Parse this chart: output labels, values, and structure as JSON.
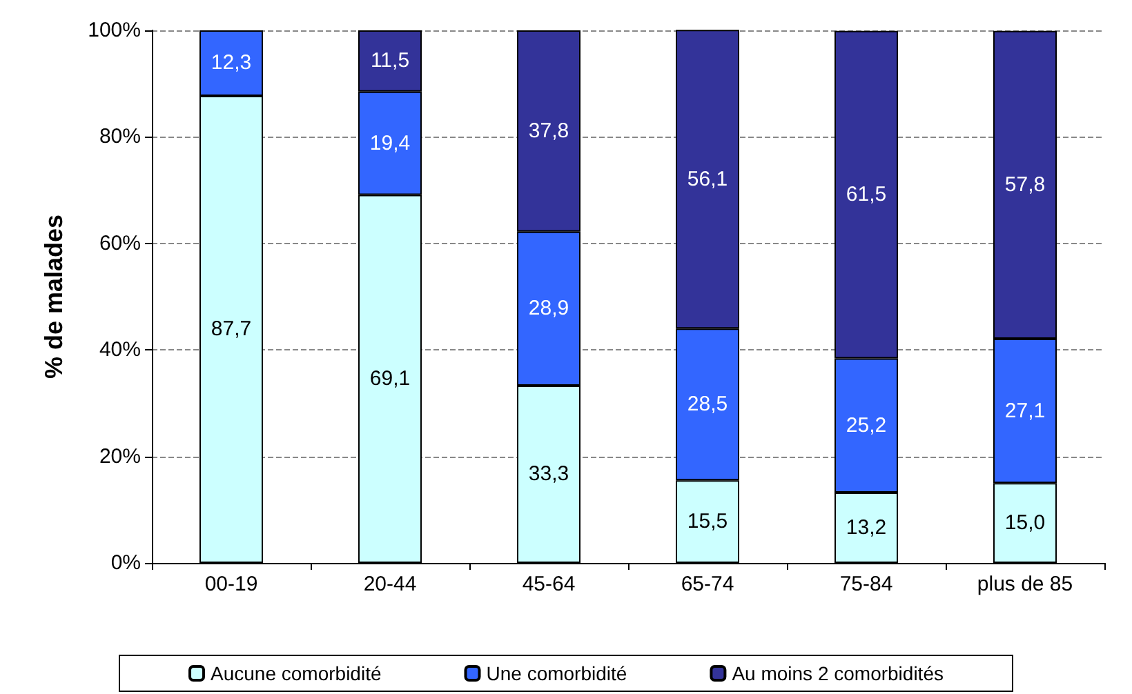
{
  "chart_data": {
    "type": "bar",
    "stacked": true,
    "ylabel": "% de malades",
    "categories": [
      "00-19",
      "20-44",
      "45-64",
      "65-74",
      "75-84",
      "plus de 85"
    ],
    "series": [
      {
        "name": "Aucune comorbidité",
        "color": "#ccffff",
        "values": [
          87.7,
          69.1,
          33.3,
          15.5,
          13.2,
          15.0
        ],
        "value_labels": [
          "87,7",
          "69,1",
          "33,3",
          "15,5",
          "13,2",
          "15,0"
        ]
      },
      {
        "name": "Une comorbidité",
        "color": "#3366ff",
        "values": [
          12.3,
          19.4,
          28.9,
          28.5,
          25.2,
          27.1
        ],
        "value_labels": [
          "12,3",
          "19,4",
          "28,9",
          "28,5",
          "25,2",
          "27,1"
        ]
      },
      {
        "name": "Au moins 2 comorbidités",
        "color": "#333399",
        "values": [
          null,
          11.5,
          37.8,
          56.1,
          61.5,
          57.8
        ],
        "value_labels": [
          null,
          "11,5",
          "37,8",
          "56,1",
          "61,5",
          "57,8"
        ]
      }
    ],
    "ylim": [
      0,
      100
    ],
    "yticks": [
      {
        "value": 0,
        "label": "0%"
      },
      {
        "value": 20,
        "label": "20%"
      },
      {
        "value": 40,
        "label": "40%"
      },
      {
        "value": 60,
        "label": "60%"
      },
      {
        "value": 80,
        "label": "80%"
      },
      {
        "value": 100,
        "label": "100%"
      }
    ],
    "grid": "y",
    "legend": "bottom"
  }
}
